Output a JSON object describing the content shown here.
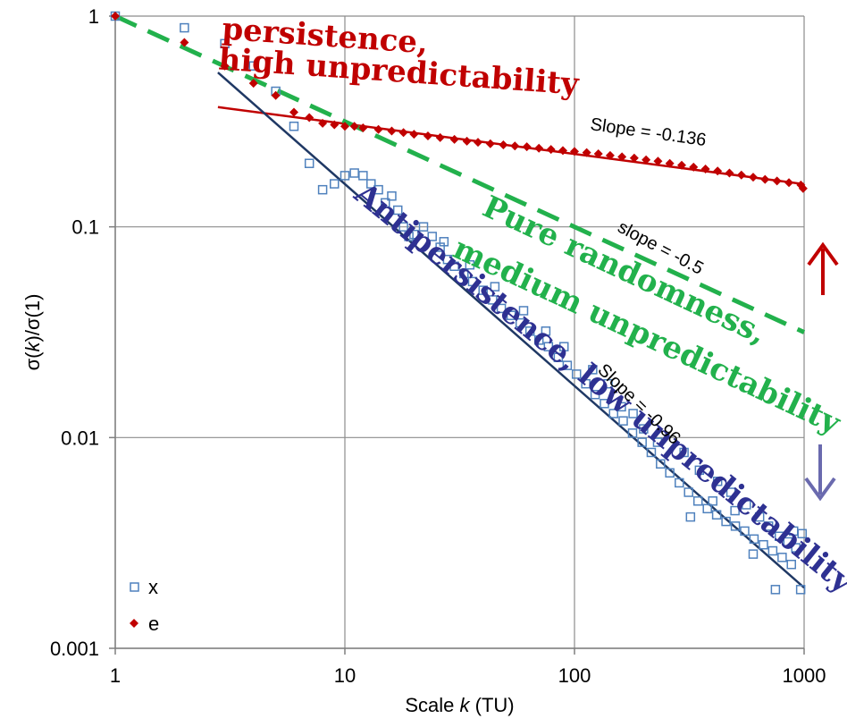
{
  "chart_data": {
    "type": "scatter",
    "x_scale": "log",
    "y_scale": "log",
    "xlim": [
      1,
      1000
    ],
    "ylim": [
      0.001,
      1
    ],
    "x_ticks": [
      "1",
      "10",
      "100",
      "1000"
    ],
    "y_ticks": [
      "1",
      "0.1",
      "0.01",
      "0.001"
    ],
    "xlabel": {
      "pre": "Scale ",
      "italic": "k",
      "post": " (TU)"
    },
    "ylabel": {
      "pre": "σ(",
      "italic": "k",
      "post": ")/σ(1)"
    },
    "grid": true,
    "legend_position": "bottom-left",
    "series": [
      {
        "name": "x",
        "color": "#4F81BD",
        "marker": "open-square",
        "points": [
          [
            1,
            1.0
          ],
          [
            2,
            0.88
          ],
          [
            3,
            0.74
          ],
          [
            4,
            0.58
          ],
          [
            5,
            0.44
          ],
          [
            6,
            0.3
          ],
          [
            7,
            0.2
          ],
          [
            8,
            0.15
          ],
          [
            9,
            0.16
          ],
          [
            10,
            0.175
          ],
          [
            11,
            0.18
          ],
          [
            12,
            0.175
          ],
          [
            13,
            0.16
          ],
          [
            14,
            0.15
          ],
          [
            15,
            0.13
          ],
          [
            16,
            0.14
          ],
          [
            17,
            0.12
          ],
          [
            18,
            0.1
          ],
          [
            19,
            0.09
          ],
          [
            20,
            0.092
          ],
          [
            22,
            0.1
          ],
          [
            24,
            0.09
          ],
          [
            26,
            0.08
          ],
          [
            28,
            0.07
          ],
          [
            30,
            0.065
          ],
          [
            33,
            0.06
          ],
          [
            36,
            0.055
          ],
          [
            40,
            0.05
          ],
          [
            44,
            0.045
          ],
          [
            48,
            0.041
          ],
          [
            53,
            0.038
          ],
          [
            58,
            0.035
          ],
          [
            64,
            0.032
          ],
          [
            70,
            0.029
          ],
          [
            77,
            0.027
          ],
          [
            85,
            0.024
          ],
          [
            93,
            0.022
          ],
          [
            102,
            0.02
          ],
          [
            112,
            0.018
          ],
          [
            123,
            0.016
          ],
          [
            135,
            0.0145
          ],
          [
            148,
            0.013
          ],
          [
            163,
            0.012
          ],
          [
            179,
            0.0105
          ],
          [
            197,
            0.0095
          ],
          [
            216,
            0.0085
          ],
          [
            237,
            0.0075
          ],
          [
            260,
            0.0068
          ],
          [
            286,
            0.0061
          ],
          [
            314,
            0.0055
          ],
          [
            345,
            0.005
          ],
          [
            379,
            0.0046
          ],
          [
            416,
            0.0043
          ],
          [
            457,
            0.004
          ],
          [
            502,
            0.0038
          ],
          [
            551,
            0.0036
          ],
          [
            605,
            0.0033
          ],
          [
            665,
            0.0031
          ],
          [
            730,
            0.0029
          ],
          [
            802,
            0.0027
          ],
          [
            880,
            0.0025
          ],
          [
            966,
            0.0019
          ],
          [
            300,
            0.0085
          ],
          [
            350,
            0.007
          ],
          [
            420,
            0.0062
          ],
          [
            480,
            0.0055
          ],
          [
            560,
            0.0048
          ],
          [
            640,
            0.0042
          ],
          [
            700,
            0.0038
          ],
          [
            780,
            0.0034
          ],
          [
            850,
            0.0032
          ],
          [
            920,
            0.003
          ],
          [
            980,
            0.0035
          ],
          [
            320,
            0.0042
          ],
          [
            400,
            0.005
          ],
          [
            500,
            0.0045
          ],
          [
            600,
            0.0028
          ],
          [
            750,
            0.0019
          ],
          [
            900,
            0.0036
          ],
          [
            120,
            0.021
          ],
          [
            140,
            0.018
          ],
          [
            160,
            0.014
          ],
          [
            180,
            0.013
          ],
          [
            200,
            0.011
          ],
          [
            230,
            0.0095
          ],
          [
            60,
            0.04
          ],
          [
            75,
            0.032
          ],
          [
            90,
            0.027
          ],
          [
            45,
            0.052
          ],
          [
            35,
            0.066
          ],
          [
            27,
            0.085
          ]
        ]
      },
      {
        "name": "e",
        "color": "#C00000",
        "marker": "filled-diamond",
        "points": [
          [
            1,
            1.0
          ],
          [
            2,
            0.75
          ],
          [
            3,
            0.58
          ],
          [
            4,
            0.48
          ],
          [
            5,
            0.42
          ],
          [
            6,
            0.35
          ],
          [
            7,
            0.33
          ],
          [
            8,
            0.31
          ],
          [
            9,
            0.305
          ],
          [
            10,
            0.3
          ],
          [
            11,
            0.3
          ],
          [
            12,
            0.295
          ],
          [
            14,
            0.29
          ],
          [
            16,
            0.285
          ],
          [
            18,
            0.28
          ],
          [
            20,
            0.275
          ],
          [
            23,
            0.27
          ],
          [
            26,
            0.265
          ],
          [
            30,
            0.26
          ],
          [
            34,
            0.255
          ],
          [
            38,
            0.252
          ],
          [
            43,
            0.248
          ],
          [
            49,
            0.245
          ],
          [
            55,
            0.242
          ],
          [
            62,
            0.24
          ],
          [
            70,
            0.236
          ],
          [
            79,
            0.233
          ],
          [
            89,
            0.23
          ],
          [
            100,
            0.228
          ],
          [
            113,
            0.225
          ],
          [
            127,
            0.222
          ],
          [
            143,
            0.218
          ],
          [
            161,
            0.215
          ],
          [
            182,
            0.212
          ],
          [
            205,
            0.208
          ],
          [
            231,
            0.205
          ],
          [
            260,
            0.2
          ],
          [
            293,
            0.196
          ],
          [
            330,
            0.192
          ],
          [
            372,
            0.188
          ],
          [
            420,
            0.184
          ],
          [
            473,
            0.18
          ],
          [
            533,
            0.176
          ],
          [
            600,
            0.172
          ],
          [
            676,
            0.168
          ],
          [
            762,
            0.165
          ],
          [
            859,
            0.162
          ],
          [
            968,
            0.158
          ],
          [
            990,
            0.152
          ]
        ]
      }
    ],
    "fit_lines": [
      {
        "label": "Slope = -0.136",
        "slope": -0.136,
        "x": [
          2.8,
          1000
        ],
        "y": [
          0.37,
          0.1594
        ],
        "color": "#C00000",
        "style": "solid"
      },
      {
        "label": "slope = -0.5",
        "slope": -0.5,
        "x": [
          1,
          1000
        ],
        "y": [
          1.0,
          0.0316
        ],
        "color": "#22B14C",
        "style": "dashed"
      },
      {
        "label": "Slope = -0.96",
        "slope": -0.96,
        "x": [
          2.8,
          1000
        ],
        "y": [
          0.54,
          0.00194
        ],
        "color": "#1F3864",
        "style": "solid"
      }
    ],
    "annotations": [
      {
        "text": "persistence,",
        "color": "#C00000",
        "x": 2.9,
        "y": 0.78,
        "rotate": 4
      },
      {
        "text": "high unpredictability",
        "color": "#C00000",
        "x": 2.8,
        "y": 0.56,
        "rotate": 4
      },
      {
        "text": "Pure randomness,",
        "color": "#22B14C",
        "x": 39,
        "y": 0.115,
        "rotate": 25
      },
      {
        "text": "medium unpredictability",
        "color": "#22B14C",
        "x": 29,
        "y": 0.073,
        "rotate": 25
      },
      {
        "text": "Antipersistence, low unpredictability",
        "color": "#2E3192",
        "x": 10.8,
        "y": 0.138,
        "rotate": 39
      }
    ],
    "arrows": [
      {
        "direction": "up",
        "color": "#C00000"
      },
      {
        "direction": "down",
        "color": "#6A6AAE"
      }
    ]
  }
}
